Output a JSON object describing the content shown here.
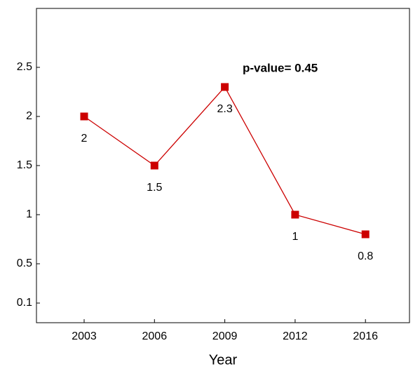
{
  "chart_data": {
    "type": "line",
    "x_label": "Year",
    "categories": [
      "2003",
      "2006",
      "2009",
      "2012",
      "2016"
    ],
    "values": [
      2,
      1.5,
      2.3,
      1,
      0.8
    ],
    "color": "#cc0000",
    "ylim": [
      -0.1,
      3.1
    ],
    "yticks": [
      0.1,
      0.5,
      1,
      1.5,
      2,
      2.5
    ],
    "annotation": "p-value= 0.45",
    "grid": false
  }
}
